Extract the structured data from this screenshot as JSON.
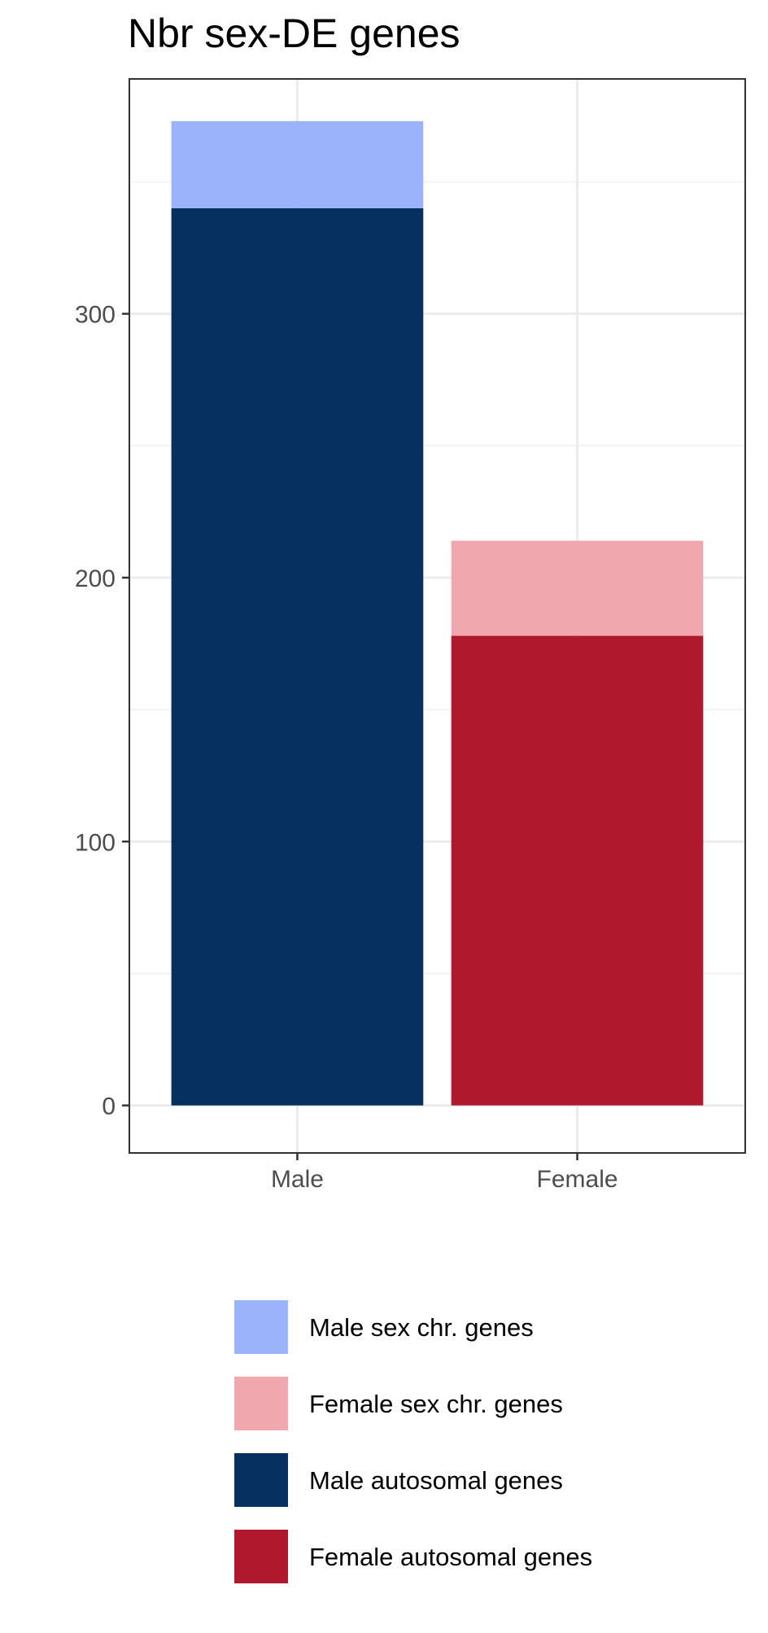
{
  "chart_data": {
    "type": "bar",
    "stacked": true,
    "title": "Nbr sex-DE genes",
    "xlabel": "",
    "ylabel": "",
    "categories": [
      "Male",
      "Female"
    ],
    "ylim": [
      -18,
      389
    ],
    "yticks": [
      0,
      100,
      200,
      300
    ],
    "grid": true,
    "legend_position": "bottom",
    "series": [
      {
        "name": "Male autosomal genes",
        "category": "Male",
        "value": 340,
        "base": 0,
        "color": "#06305f"
      },
      {
        "name": "Male sex chr. genes",
        "category": "Male",
        "value": 33,
        "base": 340,
        "color": "#9bb3fb"
      },
      {
        "name": "Female autosomal genes",
        "category": "Female",
        "value": 178,
        "base": 0,
        "color": "#b0192d"
      },
      {
        "name": "Female sex chr. genes",
        "category": "Female",
        "value": 36,
        "base": 178,
        "color": "#f1a7ae"
      }
    ],
    "legend": [
      {
        "label": "Male sex chr. genes",
        "color": "#9bb3fb"
      },
      {
        "label": "Female sex chr. genes",
        "color": "#f1a7ae"
      },
      {
        "label": "Male autosomal genes",
        "color": "#06305f"
      },
      {
        "label": "Female autosomal genes",
        "color": "#b0192d"
      }
    ]
  }
}
